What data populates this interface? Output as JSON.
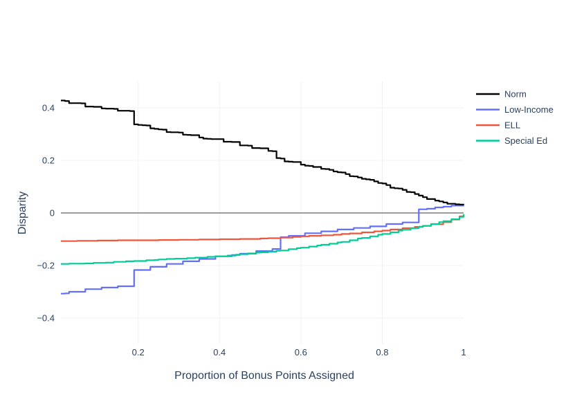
{
  "chart_data": {
    "type": "line",
    "title": "",
    "xlabel": "Proportion of Bonus Points Assigned",
    "ylabel": "Disparity",
    "xlim": [
      0.01,
      1.0
    ],
    "ylim": [
      -0.5,
      0.5
    ],
    "x_ticks": [
      0.2,
      0.4,
      0.6,
      0.8,
      1
    ],
    "x_tick_labels": [
      "0.2",
      "0.4",
      "0.6",
      "0.8",
      "1"
    ],
    "y_ticks": [
      -0.4,
      -0.2,
      0,
      0.2,
      0.4
    ],
    "y_tick_labels": [
      "−0.4",
      "−0.2",
      "0",
      "0.2",
      "0.4"
    ],
    "grid": true,
    "zero_line": true,
    "legend_position": "right",
    "series": [
      {
        "name": "Norm",
        "color": "#000000",
        "x": [
          0.01,
          0.02,
          0.03,
          0.05,
          0.06,
          0.07,
          0.08,
          0.09,
          0.1,
          0.11,
          0.12,
          0.14,
          0.15,
          0.16,
          0.17,
          0.18,
          0.19,
          0.2,
          0.21,
          0.22,
          0.23,
          0.24,
          0.25,
          0.26,
          0.27,
          0.28,
          0.3,
          0.31,
          0.32,
          0.33,
          0.35,
          0.36,
          0.37,
          0.38,
          0.4,
          0.41,
          0.42,
          0.43,
          0.45,
          0.46,
          0.47,
          0.48,
          0.5,
          0.52,
          0.53,
          0.54,
          0.55,
          0.56,
          0.57,
          0.58,
          0.6,
          0.61,
          0.62,
          0.63,
          0.65,
          0.66,
          0.67,
          0.68,
          0.69,
          0.7,
          0.71,
          0.72,
          0.73,
          0.74,
          0.75,
          0.76,
          0.77,
          0.78,
          0.79,
          0.8,
          0.81,
          0.82,
          0.83,
          0.84,
          0.85,
          0.86,
          0.87,
          0.88,
          0.89,
          0.9,
          0.91,
          0.92,
          0.93,
          0.94,
          0.95,
          0.96,
          0.97,
          0.98,
          0.99,
          1.0
        ],
        "y": [
          0.428,
          0.426,
          0.418,
          0.418,
          0.417,
          0.405,
          0.405,
          0.404,
          0.404,
          0.398,
          0.397,
          0.396,
          0.389,
          0.389,
          0.389,
          0.388,
          0.337,
          0.335,
          0.334,
          0.333,
          0.322,
          0.32,
          0.318,
          0.317,
          0.308,
          0.307,
          0.306,
          0.298,
          0.297,
          0.296,
          0.287,
          0.283,
          0.282,
          0.281,
          0.281,
          0.271,
          0.271,
          0.27,
          0.257,
          0.257,
          0.256,
          0.247,
          0.246,
          0.236,
          0.235,
          0.209,
          0.207,
          0.196,
          0.195,
          0.194,
          0.184,
          0.18,
          0.179,
          0.175,
          0.168,
          0.167,
          0.164,
          0.158,
          0.155,
          0.154,
          0.148,
          0.14,
          0.139,
          0.135,
          0.13,
          0.128,
          0.126,
          0.12,
          0.114,
          0.112,
          0.106,
          0.096,
          0.094,
          0.093,
          0.088,
          0.08,
          0.079,
          0.072,
          0.066,
          0.06,
          0.053,
          0.053,
          0.047,
          0.044,
          0.04,
          0.035,
          0.035,
          0.033,
          0.032,
          0.031
        ]
      },
      {
        "name": "Low-Income",
        "color": "#636efa",
        "x": [
          0.01,
          0.02,
          0.03,
          0.04,
          0.05,
          0.06,
          0.07,
          0.08,
          0.09,
          0.1,
          0.11,
          0.12,
          0.13,
          0.14,
          0.15,
          0.16,
          0.17,
          0.18,
          0.19,
          0.2,
          0.21,
          0.22,
          0.23,
          0.24,
          0.25,
          0.26,
          0.27,
          0.28,
          0.29,
          0.3,
          0.31,
          0.32,
          0.33,
          0.34,
          0.35,
          0.36,
          0.37,
          0.38,
          0.39,
          0.4,
          0.41,
          0.42,
          0.43,
          0.44,
          0.45,
          0.46,
          0.47,
          0.48,
          0.49,
          0.5,
          0.51,
          0.52,
          0.53,
          0.54,
          0.55,
          0.56,
          0.57,
          0.58,
          0.59,
          0.6,
          0.61,
          0.62,
          0.63,
          0.64,
          0.65,
          0.66,
          0.67,
          0.68,
          0.69,
          0.7,
          0.71,
          0.72,
          0.73,
          0.74,
          0.75,
          0.76,
          0.77,
          0.78,
          0.79,
          0.8,
          0.81,
          0.82,
          0.83,
          0.84,
          0.85,
          0.86,
          0.87,
          0.88,
          0.89,
          0.9,
          0.91,
          0.92,
          0.93,
          0.94,
          0.95,
          0.96,
          0.97,
          0.98,
          0.99,
          1.0
        ],
        "y": [
          -0.307,
          -0.306,
          -0.3,
          -0.3,
          -0.3,
          -0.3,
          -0.29,
          -0.29,
          -0.29,
          -0.29,
          -0.284,
          -0.284,
          -0.284,
          -0.284,
          -0.279,
          -0.279,
          -0.279,
          -0.279,
          -0.217,
          -0.217,
          -0.217,
          -0.217,
          -0.205,
          -0.205,
          -0.205,
          -0.205,
          -0.194,
          -0.194,
          -0.194,
          -0.194,
          -0.184,
          -0.184,
          -0.184,
          -0.184,
          -0.175,
          -0.175,
          -0.175,
          -0.175,
          -0.165,
          -0.165,
          -0.165,
          -0.165,
          -0.16,
          -0.16,
          -0.155,
          -0.155,
          -0.155,
          -0.155,
          -0.145,
          -0.145,
          -0.145,
          -0.145,
          -0.137,
          -0.137,
          -0.092,
          -0.092,
          -0.087,
          -0.087,
          -0.087,
          -0.087,
          -0.077,
          -0.077,
          -0.077,
          -0.077,
          -0.07,
          -0.07,
          -0.07,
          -0.07,
          -0.063,
          -0.063,
          -0.063,
          -0.063,
          -0.057,
          -0.057,
          -0.057,
          -0.057,
          -0.051,
          -0.051,
          -0.051,
          -0.051,
          -0.042,
          -0.042,
          -0.042,
          -0.042,
          -0.036,
          -0.036,
          -0.036,
          -0.036,
          0.014,
          0.014,
          0.016,
          0.016,
          0.021,
          0.021,
          0.024,
          0.024,
          0.028,
          0.028,
          0.028,
          0.03
        ]
      },
      {
        "name": "ELL",
        "color": "#ef553b",
        "x": [
          0.01,
          0.05,
          0.1,
          0.15,
          0.2,
          0.25,
          0.28,
          0.3,
          0.35,
          0.38,
          0.4,
          0.45,
          0.5,
          0.52,
          0.55,
          0.58,
          0.6,
          0.62,
          0.65,
          0.68,
          0.7,
          0.72,
          0.75,
          0.78,
          0.8,
          0.82,
          0.85,
          0.88,
          0.9,
          0.92,
          0.95,
          0.97,
          0.99,
          1.0
        ],
        "y": [
          -0.107,
          -0.106,
          -0.105,
          -0.104,
          -0.104,
          -0.103,
          -0.103,
          -0.102,
          -0.101,
          -0.101,
          -0.1,
          -0.099,
          -0.097,
          -0.096,
          -0.094,
          -0.091,
          -0.089,
          -0.087,
          -0.085,
          -0.083,
          -0.08,
          -0.078,
          -0.074,
          -0.07,
          -0.067,
          -0.063,
          -0.058,
          -0.053,
          -0.049,
          -0.043,
          -0.035,
          -0.025,
          -0.013,
          -0.005
        ]
      },
      {
        "name": "Special Ed",
        "color": "#00cc96",
        "x": [
          0.01,
          0.03,
          0.05,
          0.07,
          0.09,
          0.1,
          0.12,
          0.14,
          0.15,
          0.17,
          0.19,
          0.2,
          0.22,
          0.24,
          0.25,
          0.27,
          0.29,
          0.3,
          0.32,
          0.34,
          0.35,
          0.37,
          0.39,
          0.4,
          0.42,
          0.44,
          0.45,
          0.47,
          0.49,
          0.5,
          0.52,
          0.54,
          0.55,
          0.57,
          0.59,
          0.6,
          0.62,
          0.64,
          0.65,
          0.67,
          0.69,
          0.7,
          0.72,
          0.74,
          0.75,
          0.77,
          0.79,
          0.8,
          0.82,
          0.84,
          0.85,
          0.87,
          0.89,
          0.9,
          0.92,
          0.94,
          0.95,
          0.97,
          0.99,
          1.0
        ],
        "y": [
          -0.194,
          -0.193,
          -0.193,
          -0.192,
          -0.19,
          -0.19,
          -0.189,
          -0.186,
          -0.186,
          -0.184,
          -0.183,
          -0.183,
          -0.18,
          -0.179,
          -0.177,
          -0.175,
          -0.174,
          -0.174,
          -0.172,
          -0.17,
          -0.17,
          -0.167,
          -0.165,
          -0.165,
          -0.162,
          -0.159,
          -0.157,
          -0.154,
          -0.151,
          -0.15,
          -0.147,
          -0.144,
          -0.143,
          -0.138,
          -0.134,
          -0.132,
          -0.128,
          -0.124,
          -0.121,
          -0.117,
          -0.112,
          -0.11,
          -0.104,
          -0.097,
          -0.095,
          -0.089,
          -0.083,
          -0.08,
          -0.074,
          -0.067,
          -0.064,
          -0.058,
          -0.052,
          -0.049,
          -0.042,
          -0.035,
          -0.031,
          -0.024,
          -0.015,
          -0.005
        ]
      }
    ]
  }
}
